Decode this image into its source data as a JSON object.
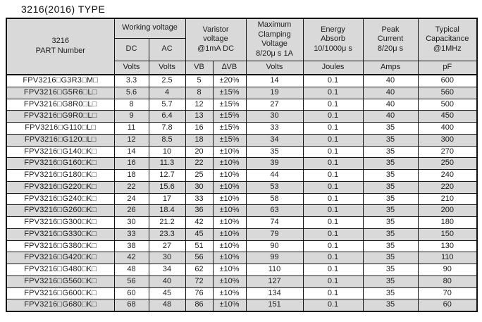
{
  "title": "3216(2016) TYPE",
  "table": {
    "header": {
      "part_number": "3216\nPART Number",
      "working_voltage": "Working voltage",
      "varistor_voltage": "Varistor\nvoltage\n@1mA DC",
      "max_clamping": "Maximum\nClamping\nVoltage\n8/20μ s 1A",
      "energy": "Energy\nAbsorb\n10/1000μ s",
      "peak_current": "Peak\nCurrent\n8/20μ s",
      "capacitance": "Typical\nCapacitance\n@1MHz",
      "dc": "DC",
      "ac": "AC",
      "units": [
        "Volts",
        "Volts",
        "VB",
        "∆VB",
        "Volts",
        "Joules",
        "Amps",
        "pF"
      ]
    },
    "column_keys": [
      "part-number",
      "dc-volts",
      "ac-volts",
      "vb",
      "delta-vb",
      "clamping-volts",
      "energy-joules",
      "peak-amps",
      "capacitance-pf"
    ],
    "rows": [
      [
        "FPV3216□G3R3□M□",
        "3.3",
        "2.5",
        "5",
        "±20%",
        "14",
        "0.1",
        "40",
        "600"
      ],
      [
        "FPV3216□G5R6□L□",
        "5.6",
        "4",
        "8",
        "±15%",
        "19",
        "0.1",
        "40",
        "560"
      ],
      [
        "FPV3216□G8R0□L□",
        "8",
        "5.7",
        "12",
        "±15%",
        "27",
        "0.1",
        "40",
        "500"
      ],
      [
        "FPV3216□G9R0□L□",
        "9",
        "6.4",
        "13",
        "±15%",
        "30",
        "0.1",
        "40",
        "450"
      ],
      [
        "FPV3216□G110□L□",
        "11",
        "7.8",
        "16",
        "±15%",
        "33",
        "0.1",
        "35",
        "400"
      ],
      [
        "FPV3216□G120□L□",
        "12",
        "8.5",
        "18",
        "±15%",
        "34",
        "0.1",
        "35",
        "300"
      ],
      [
        "FPV3216□G140□K□",
        "14",
        "10",
        "20",
        "±10%",
        "35",
        "0.1",
        "35",
        "270"
      ],
      [
        "FPV3216□G160□K□",
        "16",
        "11.3",
        "22",
        "±10%",
        "39",
        "0.1",
        "35",
        "250"
      ],
      [
        "FPV3216□G180□K□",
        "18",
        "12.7",
        "25",
        "±10%",
        "44",
        "0.1",
        "35",
        "240"
      ],
      [
        "FPV3216□G220□K□",
        "22",
        "15.6",
        "30",
        "±10%",
        "53",
        "0.1",
        "35",
        "220"
      ],
      [
        "FPV3216□G240□K□",
        "24",
        "17",
        "33",
        "±10%",
        "58",
        "0.1",
        "35",
        "210"
      ],
      [
        "FPV3216□G260□K□",
        "26",
        "18.4",
        "36",
        "±10%",
        "63",
        "0.1",
        "35",
        "200"
      ],
      [
        "FPV3216□G300□K□",
        "30",
        "21.2",
        "42",
        "±10%",
        "74",
        "0.1",
        "35",
        "180"
      ],
      [
        "FPV3216□G330□K□",
        "33",
        "23.3",
        "45",
        "±10%",
        "79",
        "0.1",
        "35",
        "150"
      ],
      [
        "FPV3216□G380□K□",
        "38",
        "27",
        "51",
        "±10%",
        "90",
        "0.1",
        "35",
        "130"
      ],
      [
        "FPV3216□G420□K□",
        "42",
        "30",
        "56",
        "±10%",
        "99",
        "0.1",
        "35",
        "110"
      ],
      [
        "FPV3216□G480□K□",
        "48",
        "34",
        "62",
        "±10%",
        "110",
        "0.1",
        "35",
        "90"
      ],
      [
        "FPV3216□G560□K□",
        "56",
        "40",
        "72",
        "±10%",
        "127",
        "0.1",
        "35",
        "80"
      ],
      [
        "FPV3216□G600□K□",
        "60",
        "45",
        "76",
        "±10%",
        "134",
        "0.1",
        "35",
        "70"
      ],
      [
        "FPV3216□G680□K□",
        "68",
        "48",
        "86",
        "±10%",
        "151",
        "0.1",
        "35",
        "60"
      ]
    ],
    "colors": {
      "header_bg": "#d9d9d9",
      "alt_row_bg": "#d9d9d9",
      "border": "#161616",
      "text": "#1c1c1c"
    }
  }
}
